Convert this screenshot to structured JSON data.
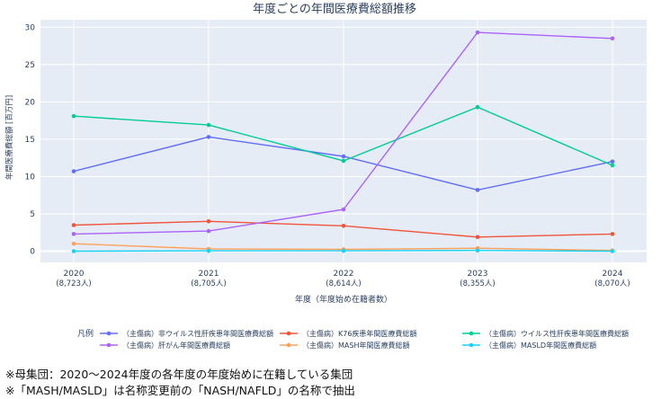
{
  "chart_data": {
    "type": "line",
    "title": "年度ごとの年間医療費総額推移",
    "xlabel": "年度（年度始め在籍者数）",
    "ylabel": "年間医療費総額 [百万円]",
    "categories": [
      "2020",
      "2021",
      "2022",
      "2023",
      "2024"
    ],
    "category_sublabels": [
      "(8,723人)",
      "(8,705人)",
      "(8,614人)",
      "(8,355人)",
      "(8,070人)"
    ],
    "ylim": [
      -1.5,
      31
    ],
    "yticks": [
      0,
      5,
      10,
      15,
      20,
      25,
      30
    ],
    "grid": true,
    "legend_title": "凡例",
    "legend_position": "bottom",
    "series": [
      {
        "name": "（主傷病）非ウイルス性肝疾患年間医療費総額",
        "color": "#636efa",
        "values": [
          10.7,
          15.3,
          12.7,
          8.2,
          12.0
        ]
      },
      {
        "name": "（主傷病）K76疾患年間医療費総額",
        "color": "#ef553b",
        "values": [
          3.5,
          4.0,
          3.4,
          1.9,
          2.3
        ]
      },
      {
        "name": "（主傷病）ウイルス性肝疾患年間医療費総額",
        "color": "#00cc96",
        "values": [
          18.1,
          16.9,
          12.1,
          19.3,
          11.5
        ]
      },
      {
        "name": "（主傷病）肝がん年間医療費総額",
        "color": "#ab63fa",
        "values": [
          2.3,
          2.7,
          5.6,
          29.3,
          28.5
        ]
      },
      {
        "name": "（主傷病）MASH年間医療費総額",
        "color": "#ffa15a",
        "values": [
          1.0,
          0.3,
          0.25,
          0.4,
          0.1
        ]
      },
      {
        "name": "（主傷病）MASLD年間医療費総額",
        "color": "#19d3f3",
        "values": [
          0.0,
          0.05,
          0.05,
          0.1,
          0.0
        ]
      }
    ]
  },
  "notes": [
    "※母集団：2020～2024年度の各年度の年度始めに在籍している集団",
    "※「MASH/MASLD」は名称変更前の「NASH/NAFLD」の名称で抽出"
  ]
}
